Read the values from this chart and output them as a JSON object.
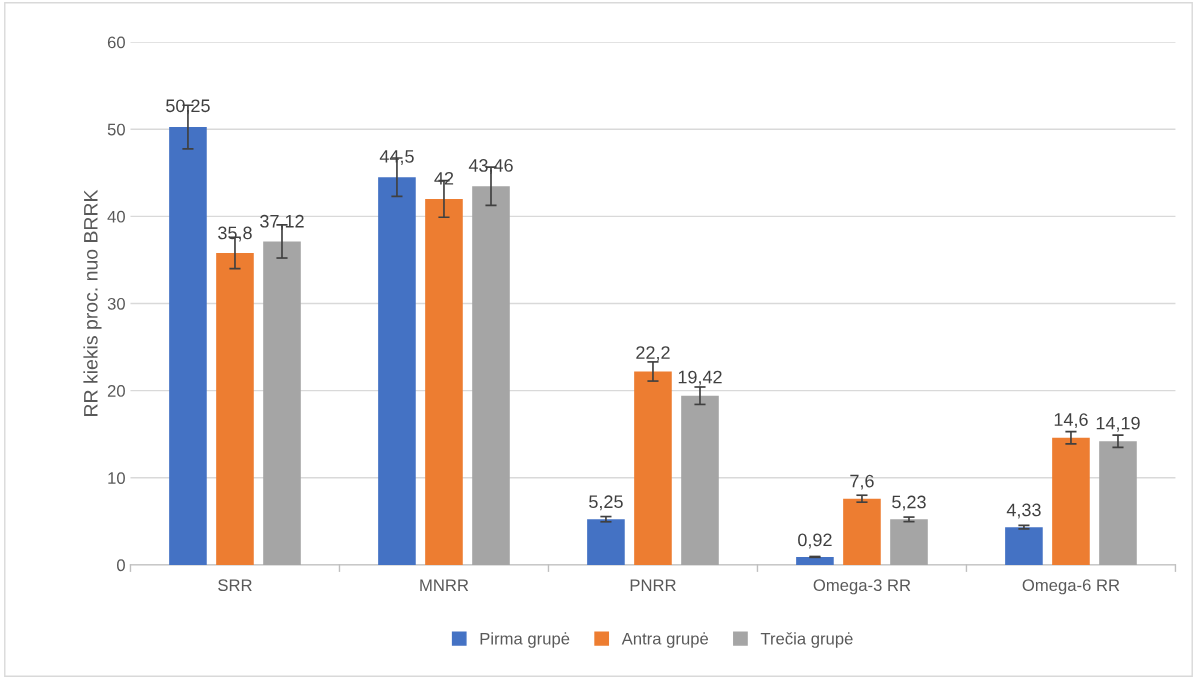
{
  "chart_data": {
    "type": "bar",
    "ylabel": "RR kiekis proc. nuo BRRK",
    "categories": [
      "SRR",
      "MNRR",
      "PNRR",
      "Omega-3 RR",
      "Omega-6 RR"
    ],
    "series": [
      {
        "name": "Pirma grupė",
        "color": "#4472c4",
        "values": [
          50.25,
          44.5,
          5.25,
          0.92,
          4.33
        ],
        "errors": [
          2.5,
          2.2,
          0.3,
          0.05,
          0.2
        ],
        "value_labels": [
          "50,25",
          "44,5",
          "5,25",
          "0,92",
          "4,33"
        ]
      },
      {
        "name": "Antra grupė",
        "color": "#ed7d31",
        "values": [
          35.8,
          42,
          22.2,
          7.6,
          14.6
        ],
        "errors": [
          1.8,
          2.1,
          1.1,
          0.4,
          0.7
        ],
        "value_labels": [
          "35,8",
          "42",
          "22,2",
          "7,6",
          "14,6"
        ]
      },
      {
        "name": "Trečia grupė",
        "color": "#a5a5a5",
        "values": [
          37.12,
          43.46,
          19.42,
          5.23,
          14.19
        ],
        "errors": [
          1.9,
          2.2,
          1.0,
          0.26,
          0.7
        ],
        "value_labels": [
          "37,12",
          "43,46",
          "19,42",
          "5,23",
          "14,19"
        ]
      }
    ],
    "ylim": [
      0,
      60
    ],
    "yticks": [
      0,
      10,
      20,
      30,
      40,
      50,
      60
    ],
    "grid": "y",
    "legend": "bottom"
  }
}
